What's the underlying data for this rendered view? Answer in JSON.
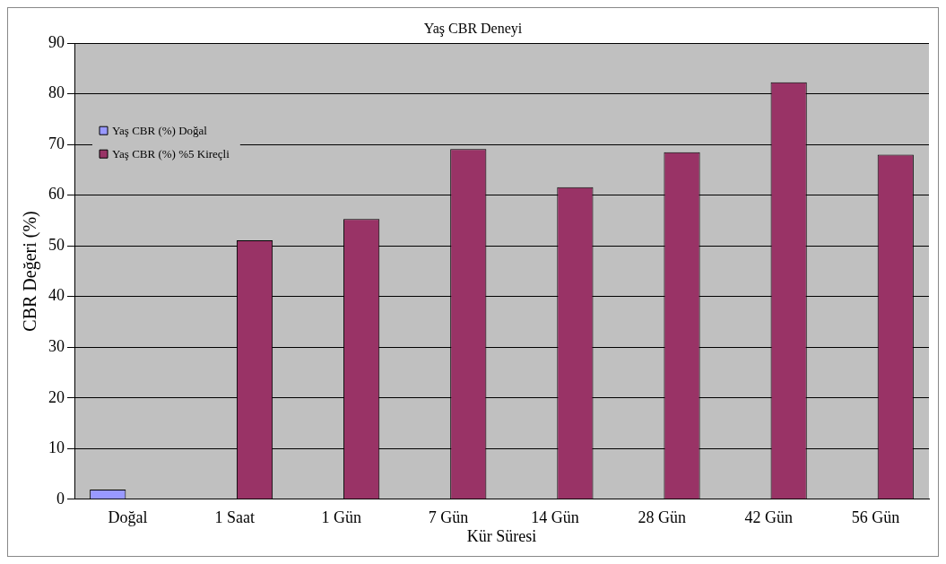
{
  "chart_data": {
    "type": "bar",
    "title": "Yaş CBR Deneyi",
    "xlabel": "Kür Süresi",
    "ylabel": "CBR Değeri (%)",
    "categories": [
      "Doğal",
      "1 Saat",
      "1 Gün",
      "7 Gün",
      "14 Gün",
      "28 Gün",
      "42 Gün",
      "56 Gün"
    ],
    "series": [
      {
        "name": "Yaş CBR (%) Doğal",
        "color": "#9999ff",
        "values": [
          1.9,
          null,
          null,
          null,
          null,
          null,
          null,
          null
        ]
      },
      {
        "name": "Yaş CBR (%) %5 Kireçli",
        "color": "#993366",
        "values": [
          null,
          51.1,
          55.3,
          69.1,
          61.6,
          68.5,
          82.3,
          68
        ]
      }
    ],
    "ylim": [
      0,
      90
    ],
    "yticks": [
      0,
      10,
      20,
      30,
      40,
      50,
      60,
      70,
      80,
      90
    ],
    "grid": "y",
    "legend": "top left"
  }
}
